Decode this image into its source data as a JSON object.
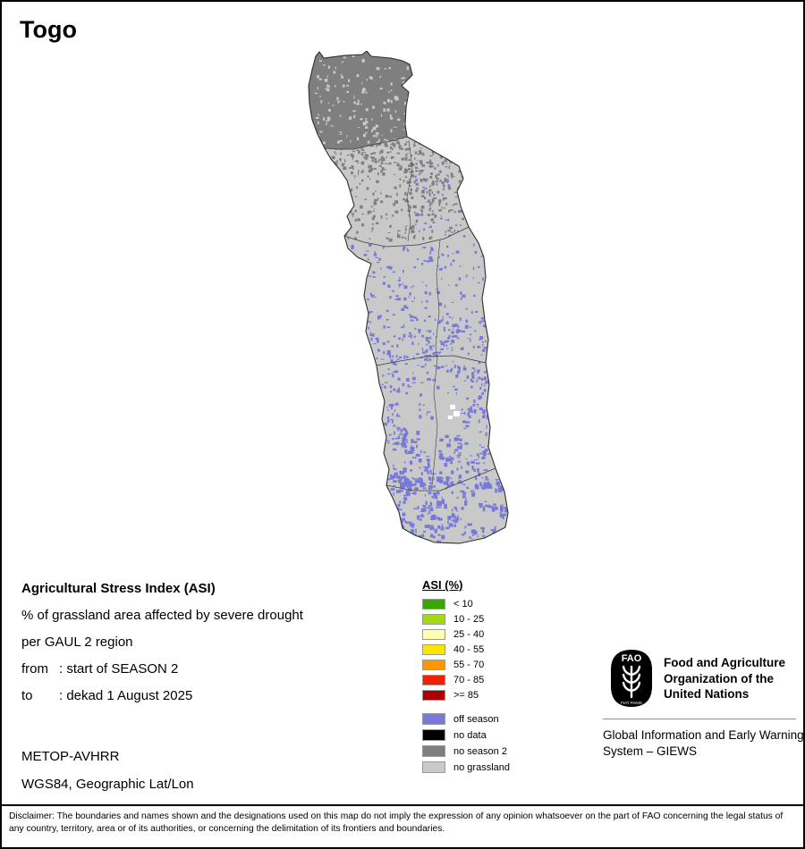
{
  "page": {
    "title": "Togo"
  },
  "info": {
    "heading": "Agricultural Stress Index (ASI)",
    "subtitle_line1": "% of grassland area affected by severe drought",
    "subtitle_line2": "per GAUL 2 region",
    "from_label": "from",
    "from_value": ": start of SEASON 2",
    "to_label": "to",
    "to_value": ": dekad 1 August 2025",
    "sensor": "METOP-AVHRR",
    "projection": "WGS84, Geographic Lat/Lon"
  },
  "legend": {
    "title": "ASI (%)",
    "classes": [
      {
        "label": "< 10",
        "color": "#37a800"
      },
      {
        "label": "10 - 25",
        "color": "#a3d919"
      },
      {
        "label": "25 - 40",
        "color": "#ffffb3"
      },
      {
        "label": "40 - 55",
        "color": "#ffe600"
      },
      {
        "label": "55 - 70",
        "color": "#ff9500"
      },
      {
        "label": "70 - 85",
        "color": "#f22000"
      },
      {
        "label": ">= 85",
        "color": "#a80000"
      }
    ],
    "extras": [
      {
        "label": "off season",
        "color": "#7879d8"
      },
      {
        "label": "no data",
        "color": "#000000"
      },
      {
        "label": "no season 2",
        "color": "#7f7f7f"
      },
      {
        "label": "no grassland",
        "color": "#c9c9c9"
      }
    ]
  },
  "map": {
    "country": "Togo",
    "outline_color": "#2e2e2e",
    "region_border_color": "#3d3d3d"
  },
  "footer": {
    "logo_text": "FAO",
    "logo_motto": "FIAT PANIS",
    "org_name": "Food and Agriculture Organization of the United Nations",
    "giews": "Global Information and Early Warning System – GIEWS",
    "disclaimer": "Disclaimer: The boundaries and names shown and the designations used on this map do not imply the expression of any opinion whatsoever on the part of FAO concerning the legal status of any country, territory, area or of its authorities, or concerning the delimitation of its frontiers and boundaries."
  }
}
